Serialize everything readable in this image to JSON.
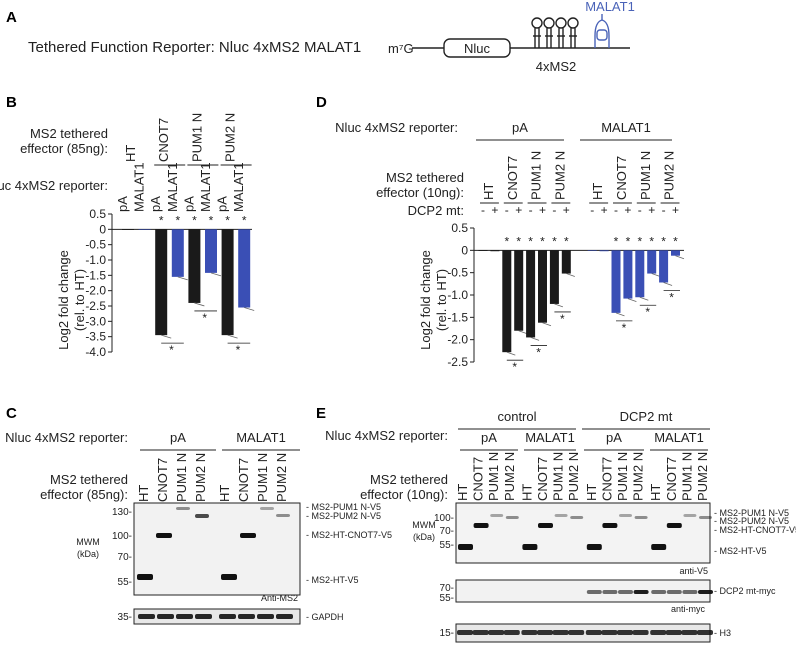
{
  "panels": {
    "A": {
      "letter": "A",
      "title": "Tethered Function Reporter: Nluc 4xMS2 MALAT1",
      "cap": "m⁷G",
      "orf": "Nluc",
      "ms2": "4xMS2",
      "malat": "MALAT1"
    },
    "B": {
      "letter": "B",
      "effector_label": "MS2 tethered\neffector (85ng):",
      "effectors": [
        "HT",
        "CNOT7",
        "PUM1 N",
        "PUM2 N"
      ],
      "reporter_label": "Nluc 4xMS2 reporter:",
      "reporters": [
        "pA",
        "MALAT1",
        "pA",
        "MALAT1",
        "pA",
        "MALAT1",
        "pA",
        "MALAT1"
      ],
      "ylabel": "Log2 fold change\n(rel. to HT)"
    },
    "C": {
      "letter": "C",
      "reporter_label": "Nluc 4xMS2 reporter:",
      "groups": [
        "pA",
        "MALAT1"
      ],
      "effector_label": "MS2 tethered\neffector (85ng):",
      "lanes": [
        "HT",
        "CNOT7",
        "PUM1 N",
        "PUM2 N",
        "HT",
        "CNOT7",
        "PUM1 N",
        "PUM2 N"
      ],
      "mwm": "MWM\n(kDa)",
      "markers": [
        "130-",
        "100-",
        "70-",
        "55-",
        "35-"
      ],
      "bands": [
        "MS2-PUM1 N-V5",
        "MS2-PUM2 N-V5",
        "MS2-HT-CNOT7-V5",
        "MS2-HT-V5"
      ],
      "antibody": "Anti-MS2",
      "loading": "GAPDH"
    },
    "D": {
      "letter": "D",
      "reporter_label": "Nluc 4xMS2 reporter:",
      "groups": [
        "pA",
        "MALAT1"
      ],
      "effector_label": "MS2 tethered\neffector (10ng):",
      "effectors": [
        "HT",
        "CNOT7",
        "PUM1 N",
        "PUM2 N",
        "HT",
        "CNOT7",
        "PUM1 N",
        "PUM2 N"
      ],
      "dcp2_label": "DCP2 mt:",
      "dcp2": [
        "-",
        "+",
        "-",
        "+",
        "-",
        "+",
        "-",
        "+",
        "-",
        "+",
        "-",
        "+",
        "-",
        "+",
        "-",
        "+"
      ],
      "ylabel": "Log2 fold change\n(rel. to HT)"
    },
    "E": {
      "letter": "E",
      "conditions": [
        "control",
        "DCP2 mt"
      ],
      "reporter_label": "Nluc 4xMS2 reporter:",
      "groups": [
        "pA",
        "MALAT1",
        "pA",
        "MALAT1"
      ],
      "effector_label": "MS2 tethered\neffector (10ng):",
      "lanes": [
        "HT",
        "CNOT7",
        "PUM1 N",
        "PUM2 N",
        "HT",
        "CNOT7",
        "PUM1 N",
        "PUM2 N",
        "HT",
        "CNOT7",
        "PUM1 N",
        "PUM2 N",
        "HT",
        "CNOT7",
        "PUM1 N",
        "PUM2 N"
      ],
      "mwm": "MWM\n(kDa)",
      "markers": [
        "100-",
        "70-",
        "55-",
        "70-",
        "55-",
        "15-"
      ],
      "bands": [
        "MS2-PUM1 N-V5",
        "MS2-PUM2 N-V5",
        "MS2-HT-CNOT7-V5",
        "MS2-HT-V5"
      ],
      "antibody1": "anti-V5",
      "band2": "DCP2 mt-myc",
      "antibody2": "anti-myc",
      "loading": "H3"
    }
  },
  "chart_data": [
    {
      "type": "bar",
      "panel": "B",
      "title": "",
      "ylabel": "Log2 fold change (rel. to HT)",
      "ylim": [
        -4.0,
        0.5
      ],
      "yticks": [
        "0.5",
        "0",
        "-0.5",
        "-1.0",
        "-1.5",
        "-2.0",
        "-2.5",
        "-3.0",
        "-3.5",
        "-4.0"
      ],
      "categories": [
        "HT pA",
        "HT MALAT1",
        "CNOT7 pA",
        "CNOT7 MALAT1",
        "PUM1 N pA",
        "PUM1 N MALAT1",
        "PUM2 N pA",
        "PUM2 N MALAT1"
      ],
      "values": [
        0,
        0,
        -3.45,
        -1.55,
        -2.4,
        -1.42,
        -3.45,
        -2.55
      ],
      "colors": [
        "#1a1a1a",
        "#3a4fb5",
        "#1a1a1a",
        "#3a4fb5",
        "#1a1a1a",
        "#3a4fb5",
        "#1a1a1a",
        "#3a4fb5"
      ],
      "significance": [
        "",
        "",
        "*",
        "*",
        "*",
        "*",
        "*",
        "*"
      ],
      "pair_marks": [
        "*",
        "*",
        "*"
      ]
    },
    {
      "type": "bar",
      "panel": "D",
      "title": "",
      "ylabel": "Log2 fold change (rel. to HT)",
      "ylim": [
        -2.5,
        0.5
      ],
      "yticks": [
        "0.5",
        "0",
        "-0.5",
        "-1.0",
        "-1.5",
        "-2.0",
        "-2.5"
      ],
      "categories": [
        "pA HT -",
        "pA HT +",
        "pA CNOT7 -",
        "pA CNOT7 +",
        "pA PUM1 N -",
        "pA PUM1 N +",
        "pA PUM2 N -",
        "pA PUM2 N +",
        "MALAT1 HT -",
        "MALAT1 HT +",
        "MALAT1 CNOT7 -",
        "MALAT1 CNOT7 +",
        "MALAT1 PUM1 N -",
        "MALAT1 PUM1 N +",
        "MALAT1 PUM2 N -",
        "MALAT1 PUM2 N +"
      ],
      "values": [
        0,
        -0.02,
        -2.28,
        -1.8,
        -1.95,
        -1.62,
        -1.2,
        -0.52,
        0,
        -0.02,
        -1.4,
        -1.08,
        -1.05,
        -0.52,
        -0.72,
        -0.12
      ],
      "colors": [
        "#1a1a1a",
        "#1a1a1a",
        "#1a1a1a",
        "#1a1a1a",
        "#1a1a1a",
        "#1a1a1a",
        "#1a1a1a",
        "#1a1a1a",
        "#3a4fb5",
        "#3a4fb5",
        "#3a4fb5",
        "#3a4fb5",
        "#3a4fb5",
        "#3a4fb5",
        "#3a4fb5",
        "#3a4fb5"
      ],
      "significance": [
        "",
        "",
        "*",
        "*",
        "*",
        "*",
        "*",
        "*",
        "",
        "",
        "*",
        "*",
        "*",
        "*",
        "*",
        "*"
      ],
      "pair_marks": [
        "*",
        "*",
        "*",
        "*",
        "*",
        "*"
      ]
    }
  ]
}
